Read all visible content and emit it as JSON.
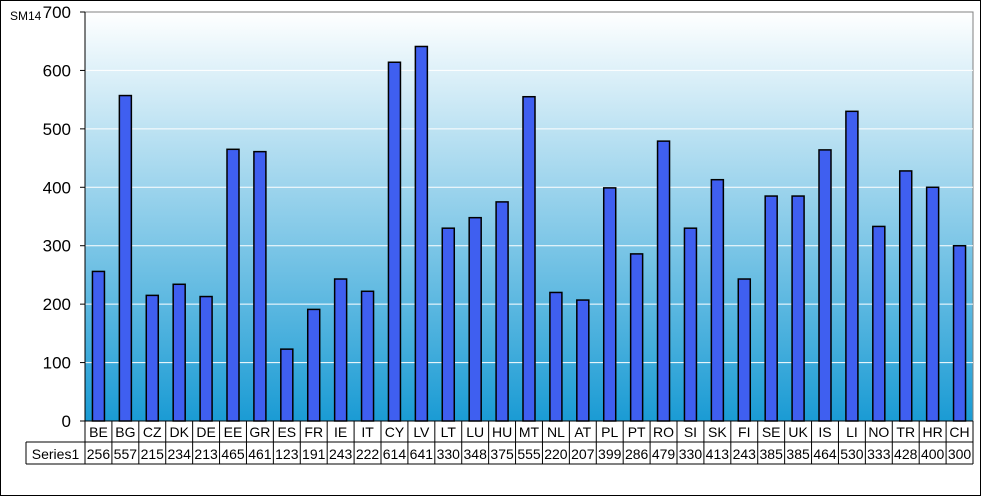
{
  "chart_data": {
    "type": "bar",
    "corner_label": "SM14",
    "series_header": "Series1",
    "categories": [
      "BE",
      "BG",
      "CZ",
      "DK",
      "DE",
      "EE",
      "GR",
      "ES",
      "FR",
      "IE",
      "IT",
      "CY",
      "LV",
      "LT",
      "LU",
      "HU",
      "MT",
      "NL",
      "AT",
      "PL",
      "PT",
      "RO",
      "SI",
      "SK",
      "FI",
      "SE",
      "UK",
      "IS",
      "LI",
      "NO",
      "TR",
      "HR",
      "CH"
    ],
    "series": [
      {
        "name": "Series1",
        "values": [
          256,
          557,
          215,
          234,
          213,
          465,
          461,
          123,
          191,
          243,
          222,
          614,
          641,
          330,
          348,
          375,
          555,
          220,
          207,
          399,
          286,
          479,
          330,
          413,
          243,
          385,
          385,
          464,
          530,
          333,
          428,
          400,
          300
        ]
      }
    ],
    "ylim": [
      0,
      700
    ],
    "yticks": [
      "0",
      "100",
      "200",
      "300",
      "400",
      "500",
      "600",
      "700"
    ],
    "grid": true,
    "colors": {
      "bar_fill": "#3f5ff0",
      "bar_stroke": "#000000",
      "plot_bg_top": "#ffffff",
      "plot_bg_bottom": "#1a9bd4",
      "grid": "#ffffff"
    }
  }
}
